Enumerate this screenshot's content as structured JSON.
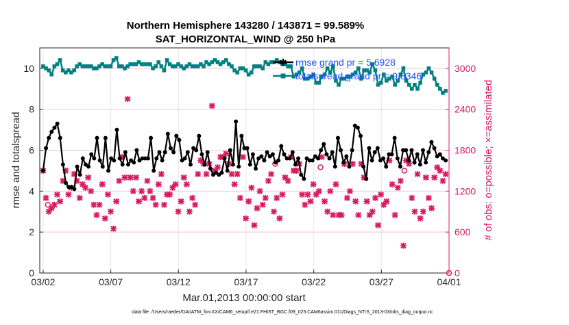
{
  "chart_data": {
    "type": "line",
    "title_line1": "Northern Hemisphere 143280 / 143871 = 99.589%",
    "title_line2": "SAT_HORIZONTAL_WIND @ 250 hPa",
    "xlabel": "Mar.01,2013 00:00:00 start",
    "ylabel_left": "rmse and totalspread",
    "ylabel_right": "# of obs: o=possible; ×=assimilated",
    "footer": "data file: /Users/raeder/DAI/ATM_forcXX/CAM6_setup/f.e21.FHIST_BGC.f09_025.CAM6assim.011/Diags_NTrS_2013-03/obs_diag_output.nc",
    "x_tick_labels": [
      "03/02",
      "03/07",
      "03/12",
      "03/17",
      "03/22",
      "03/27",
      "04/01"
    ],
    "x_tick_days": [
      1,
      6,
      11,
      16,
      21,
      26,
      31
    ],
    "xlim_days": [
      0.75,
      31.0
    ],
    "ylim_left": [
      0,
      11
    ],
    "yticks_left": [
      "0",
      "2",
      "4",
      "6",
      "8",
      "10"
    ],
    "ylim_right": [
      0,
      3300
    ],
    "yticks_right": [
      "0",
      "600",
      "1200",
      "1800",
      "2400",
      "3000"
    ],
    "grid": true,
    "legend_position": "top-right",
    "legend": [
      {
        "label": "rmse grand pr = 5.6928",
        "color": "#000000",
        "marker": "star"
      },
      {
        "label": "totalspread grand pr = 9.8346",
        "color": "#008080",
        "marker": "square"
      }
    ],
    "colors": {
      "rmse": "#000000",
      "spread": "#008080",
      "obs": "#d81b60",
      "legend_text": "#1f4fff"
    },
    "series": [
      {
        "name": "rmse",
        "axis": "left",
        "values": [
          5.0,
          6.1,
          6.6,
          6.9,
          7.1,
          7.3,
          6.6,
          5.3,
          4.4,
          4.2,
          4.2,
          4.1,
          5.2,
          4.8,
          5.6,
          5.3,
          5.2,
          5.8,
          5.6,
          6.6,
          5.5,
          5.2,
          6.6,
          5.0,
          5.6,
          5.5,
          7.0,
          5.6,
          5.3,
          5.9,
          5.3,
          5.5,
          5.4,
          6.0,
          5.5,
          5.6,
          5.6,
          5.6,
          6.6,
          5.0,
          5.6,
          5.9,
          5.5,
          5.9,
          6.8,
          6.1,
          5.9,
          6.7,
          6.5,
          5.5,
          5.6,
          5.9,
          5.3,
          6.1,
          6.0,
          6.7,
          5.8,
          5.3,
          5.9,
          5.1,
          4.8,
          4.9,
          4.8,
          4.9,
          5.6,
          5.0,
          6.0,
          5.3,
          7.4,
          5.2,
          6.7,
          6.1,
          6.1,
          5.3,
          5.8,
          5.1,
          5.6,
          5.7,
          5.5,
          5.9,
          5.7,
          5.8,
          5.4,
          5.5,
          6.2,
          5.8,
          5.6,
          5.6,
          5.9,
          5.3,
          5.6,
          4.8,
          4.6,
          5.6,
          5.5,
          5.5,
          5.7,
          5.6,
          6.0,
          6.3,
          5.8,
          5.6,
          5.9,
          5.2,
          6.6,
          6.0,
          5.4,
          5.7,
          5.2,
          6.0,
          7.2,
          7.1,
          6.7,
          5.2,
          4.6,
          6.1,
          5.5,
          5.9,
          6.1,
          5.5,
          5.6,
          5.2,
          5.8,
          5.8,
          6.6,
          5.6,
          5.2,
          6.0,
          6.0,
          5.5,
          6.0,
          5.4,
          5.8,
          5.3,
          6.0,
          5.4,
          5.9,
          6.4,
          6.1,
          5.7,
          5.8,
          5.6,
          5.5
        ]
      },
      {
        "name": "totalspread",
        "axis": "left",
        "values": [
          10.1,
          10.0,
          9.9,
          9.7,
          10.1,
          10.2,
          10.4,
          9.9,
          9.8,
          9.9,
          9.8,
          9.9,
          10.1,
          10.2,
          10.1,
          10.1,
          10.1,
          10.1,
          10.0,
          10.0,
          10.1,
          10.2,
          10.1,
          10.1,
          10.1,
          10.4,
          10.5,
          10.1,
          10.1,
          10.0,
          10.1,
          10.2,
          10.2,
          10.2,
          10.3,
          10.2,
          10.2,
          10.2,
          10.2,
          10.0,
          10.1,
          10.3,
          10.1,
          9.9,
          10.4,
          10.2,
          10.1,
          10.1,
          10.2,
          10.1,
          10.0,
          10.1,
          10.2,
          10.1,
          10.1,
          10.1,
          10.2,
          10.1,
          10.3,
          10.2,
          10.3,
          10.4,
          10.3,
          10.2,
          10.3,
          10.4,
          10.2,
          10.1,
          9.9,
          9.8,
          10.0,
          10.0,
          9.9,
          9.7,
          9.8,
          10.1,
          10.1,
          10.1,
          10.0,
          10.3,
          10.2,
          10.3,
          10.3,
          10.4,
          10.3,
          10.2,
          10.2,
          10.1,
          10.1,
          9.6,
          9.7,
          9.8,
          10.0,
          9.5,
          9.5,
          9.6,
          9.7,
          9.3,
          9.3,
          9.6,
          9.7,
          10.0,
          9.8,
          10.1,
          9.4,
          9.2,
          9.5,
          9.5,
          9.6,
          9.6,
          9.7,
          9.8,
          10.0,
          9.5,
          9.9,
          9.9,
          9.8,
          10.2,
          9.9,
          9.2,
          9.3,
          9.7,
          9.4,
          9.5,
          9.6,
          9.2,
          9.4,
          9.7,
          10.0,
          9.4,
          9.2,
          9.0,
          9.2,
          9.0,
          9.3,
          9.7,
          9.8,
          10.0,
          9.8,
          9.5,
          9.2,
          9.0,
          8.8,
          8.9
        ]
      },
      {
        "name": "assimilated",
        "axis": "right",
        "values": [
          1500,
          1100,
          900,
          950,
          1000,
          1150,
          1050,
          1350,
          1500,
          1150,
          1250,
          1450,
          1350,
          1100,
          1300,
          1250,
          1400,
          1200,
          1000,
          850,
          1000,
          1300,
          800,
          1150,
          900,
          650,
          1050,
          1350,
          1700,
          1400,
          2550,
          1400,
          1200,
          1400,
          1050,
          1200,
          1100,
          1350,
          1200,
          1100,
          1000,
          1300,
          1450,
          1000,
          1150,
          1150,
          1250,
          1300,
          900,
          1050,
          1400,
          1300,
          900,
          1100,
          1000,
          1450,
          1650,
          1600,
          1450,
          1600,
          2450,
          1500,
          1550,
          1700,
          1700,
          1750,
          1600,
          1450,
          1300,
          1450,
          1100,
          1700,
          800,
          1050,
          1250,
          700,
          950,
          1200,
          1000,
          1100,
          1350,
          1450,
          900,
          1100,
          800,
          1150,
          1400,
          1350,
          1700,
          1500,
          1500,
          1600,
          1150,
          1000,
          1150,
          1050,
          1300,
          1150,
          1200,
          1700,
          1050,
          900,
          1200,
          850,
          1300,
          850,
          850,
          1600,
          1100,
          1200,
          1600,
          1050,
          850,
          1600,
          1400,
          1050,
          850,
          900,
          1100,
          700,
          1150,
          1000,
          1050,
          1650,
          1300,
          850,
          1250,
          1350,
          400,
          1650,
          1600,
          1100,
          900,
          1450,
          800,
          900,
          1400,
          1100,
          950,
          1400,
          1550,
          1500,
          1350,
          1450
        ]
      },
      {
        "name": "possible",
        "axis": "right",
        "values": [
          {
            "day": 1.35,
            "v": 1000
          },
          {
            "day": 18.15,
            "v": 1600
          },
          {
            "day": 21.5,
            "v": 1550
          },
          {
            "day": 27.7,
            "v": 1500
          },
          {
            "day": 31.0,
            "v": 0
          }
        ]
      }
    ]
  }
}
